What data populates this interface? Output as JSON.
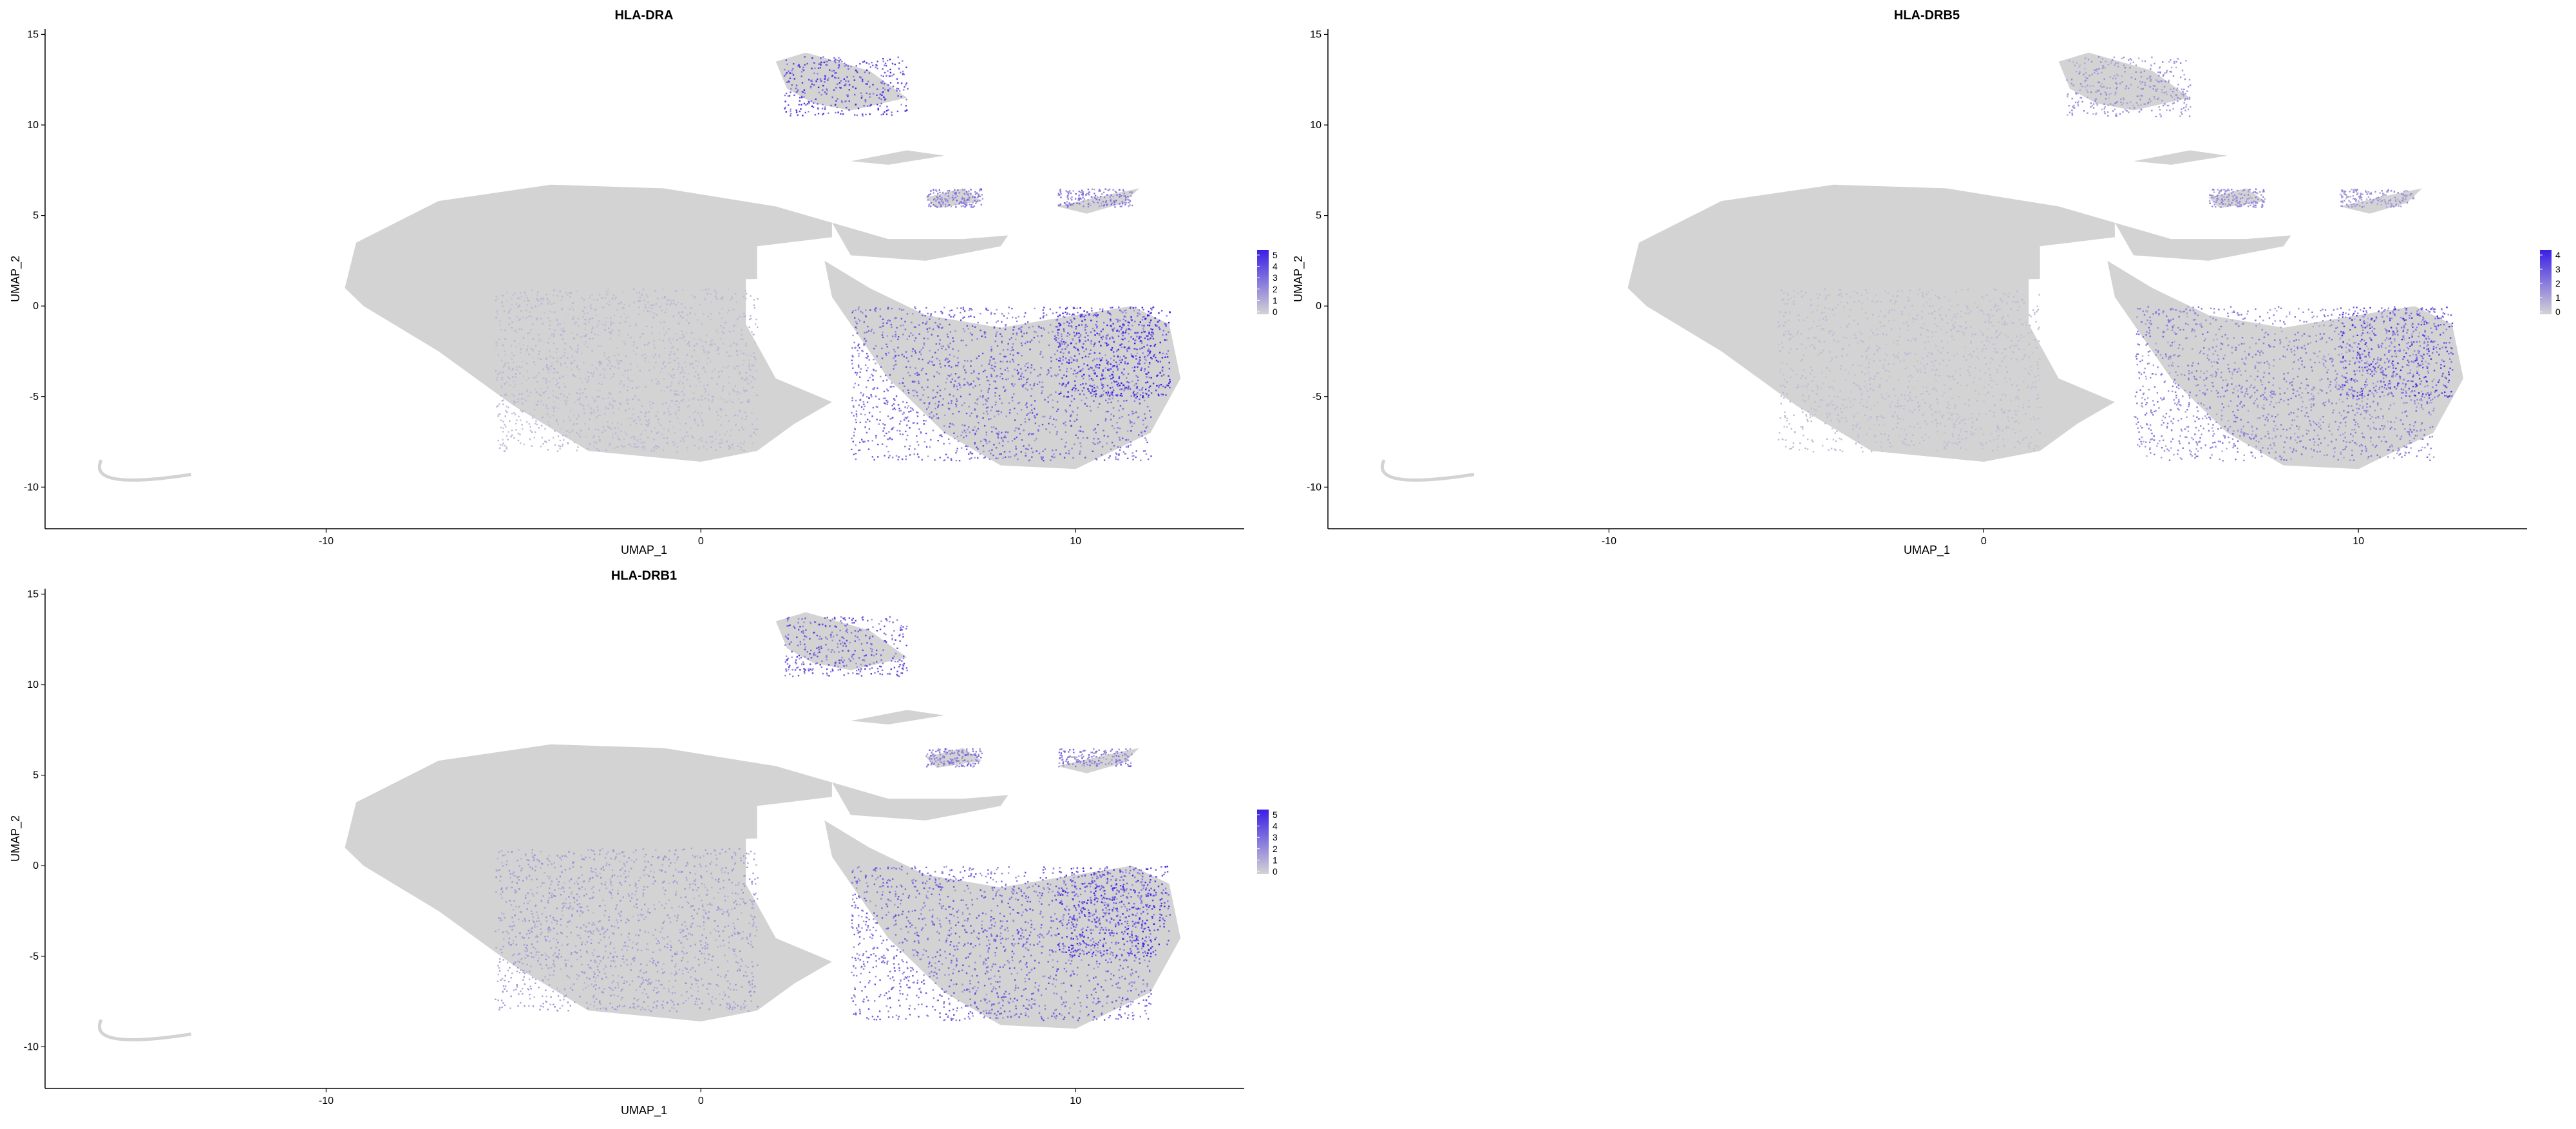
{
  "colors": {
    "low": "#d3d3d3",
    "high": "#3a1fe6",
    "axis": "#000000",
    "background": "#ffffff"
  },
  "chart_data": [
    {
      "type": "scatter",
      "title": "HLA-DRA",
      "xlabel": "UMAP_1",
      "ylabel": "UMAP_2",
      "xlim": [
        -17.5,
        14.5
      ],
      "ylim": [
        -12.3,
        15.3
      ],
      "x_ticks": [
        "-10",
        "0",
        "10"
      ],
      "y_ticks": [
        "15",
        "10",
        "5",
        "0",
        "-5",
        "-10"
      ],
      "legend": {
        "placement": "right",
        "ticks": [
          "5",
          "4",
          "3",
          "2",
          "1",
          "0"
        ],
        "range": [
          0,
          5
        ]
      },
      "grid": false,
      "clusters": [
        {
          "x": [
            -5.5,
            1.5
          ],
          "y": [
            1.0,
            6.5
          ],
          "level": 0.05
        },
        {
          "x": [
            -5.5,
            1.5
          ],
          "y": [
            -8.0,
            1.0
          ],
          "level": 0.15
        },
        {
          "x": [
            4.0,
            12.0
          ],
          "y": [
            -8.5,
            0.0
          ],
          "level": 0.6
        },
        {
          "x": [
            9.5,
            12.5
          ],
          "y": [
            -5.0,
            0.0
          ],
          "level": 0.9
        },
        {
          "x": [
            2.2,
            5.5
          ],
          "y": [
            10.5,
            13.8
          ],
          "level": 0.75
        },
        {
          "x": [
            6.0,
            7.5
          ],
          "y": [
            5.5,
            6.5
          ],
          "level": 0.5
        },
        {
          "x": [
            9.5,
            11.5
          ],
          "y": [
            5.5,
            6.5
          ],
          "level": 0.5
        },
        {
          "x": [
            -16.0,
            -13.5
          ],
          "y": [
            -10.0,
            -8.5
          ],
          "level": 0.0
        }
      ]
    },
    {
      "type": "scatter",
      "title": "HLA-DRB5",
      "xlabel": "UMAP_1",
      "ylabel": "UMAP_2",
      "xlim": [
        -17.5,
        14.5
      ],
      "ylim": [
        -12.3,
        15.3
      ],
      "x_ticks": [
        "-10",
        "0",
        "10"
      ],
      "y_ticks": [
        "15",
        "10",
        "5",
        "0",
        "-5",
        "-10"
      ],
      "legend": {
        "placement": "right",
        "ticks": [
          "4",
          "3",
          "2",
          "1",
          "0"
        ],
        "range": [
          0,
          4
        ]
      },
      "grid": false,
      "clusters": [
        {
          "x": [
            -5.5,
            1.5
          ],
          "y": [
            1.0,
            6.5
          ],
          "level": 0.03
        },
        {
          "x": [
            -5.5,
            1.5
          ],
          "y": [
            -8.0,
            1.0
          ],
          "level": 0.12
        },
        {
          "x": [
            4.0,
            12.0
          ],
          "y": [
            -8.5,
            0.0
          ],
          "level": 0.45
        },
        {
          "x": [
            9.5,
            12.5
          ],
          "y": [
            -5.0,
            0.0
          ],
          "level": 0.75
        },
        {
          "x": [
            2.2,
            5.5
          ],
          "y": [
            10.5,
            13.8
          ],
          "level": 0.35
        },
        {
          "x": [
            6.0,
            7.5
          ],
          "y": [
            5.5,
            6.5
          ],
          "level": 0.4
        },
        {
          "x": [
            9.5,
            11.5
          ],
          "y": [
            5.5,
            6.5
          ],
          "level": 0.35
        },
        {
          "x": [
            -16.0,
            -13.5
          ],
          "y": [
            -10.0,
            -8.5
          ],
          "level": 0.0
        }
      ]
    },
    {
      "type": "scatter",
      "title": "HLA-DRB1",
      "xlabel": "UMAP_1",
      "ylabel": "UMAP_2",
      "xlim": [
        -17.5,
        14.5
      ],
      "ylim": [
        -12.3,
        15.3
      ],
      "x_ticks": [
        "-10",
        "0",
        "10"
      ],
      "y_ticks": [
        "15",
        "10",
        "5",
        "0",
        "-5",
        "-10"
      ],
      "legend": {
        "placement": "right",
        "ticks": [
          "5",
          "4",
          "3",
          "2",
          "1",
          "0"
        ],
        "range": [
          0,
          5
        ]
      },
      "grid": false,
      "clusters": [
        {
          "x": [
            -5.5,
            1.5
          ],
          "y": [
            1.0,
            6.5
          ],
          "level": 0.05
        },
        {
          "x": [
            -5.5,
            1.5
          ],
          "y": [
            -8.0,
            1.0
          ],
          "level": 0.3
        },
        {
          "x": [
            4.0,
            12.0
          ],
          "y": [
            -8.5,
            0.0
          ],
          "level": 0.6
        },
        {
          "x": [
            9.5,
            12.5
          ],
          "y": [
            -5.0,
            0.0
          ],
          "level": 0.85
        },
        {
          "x": [
            2.2,
            5.5
          ],
          "y": [
            10.5,
            13.8
          ],
          "level": 0.65
        },
        {
          "x": [
            6.0,
            7.5
          ],
          "y": [
            5.5,
            6.5
          ],
          "level": 0.5
        },
        {
          "x": [
            9.5,
            11.5
          ],
          "y": [
            5.5,
            6.5
          ],
          "level": 0.5
        },
        {
          "x": [
            -16.0,
            -13.5
          ],
          "y": [
            -10.0,
            -8.5
          ],
          "level": 0.0
        }
      ]
    }
  ]
}
